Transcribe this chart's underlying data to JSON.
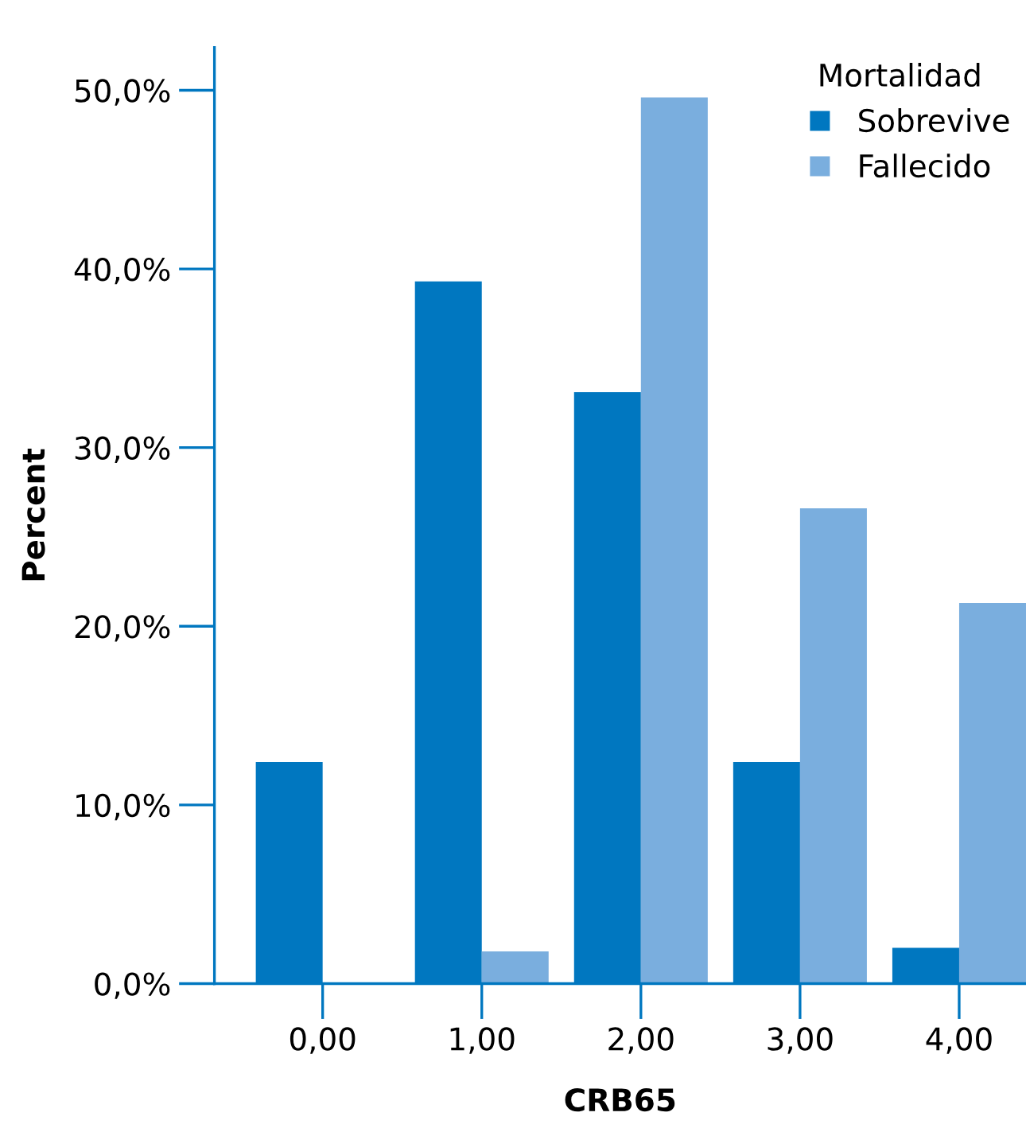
{
  "chart_data": {
    "type": "bar",
    "xlabel": "CRB65",
    "ylabel": "Percent",
    "legend_title": "Mortalidad",
    "legend": "top right",
    "grid": false,
    "categories": [
      "0,00",
      "1,00",
      "2,00",
      "3,00",
      "4,00"
    ],
    "series": [
      {
        "name": "Sobrevive",
        "color": "#0077c0",
        "values": [
          12.4,
          39.3,
          33.1,
          12.4,
          2.0
        ]
      },
      {
        "name": "Fallecido",
        "color": "#7aaede",
        "values": [
          0,
          1.8,
          49.6,
          26.6,
          21.3
        ]
      }
    ],
    "ylim": [
      0,
      52.4
    ],
    "yticks": [
      {
        "value": 0,
        "label": "0,0%"
      },
      {
        "value": 10,
        "label": "10,0%"
      },
      {
        "value": 20,
        "label": "20,0%"
      },
      {
        "value": 30,
        "label": "30,0%"
      },
      {
        "value": 40,
        "label": "40,0%"
      },
      {
        "value": 50,
        "label": "50,0%"
      }
    ]
  }
}
